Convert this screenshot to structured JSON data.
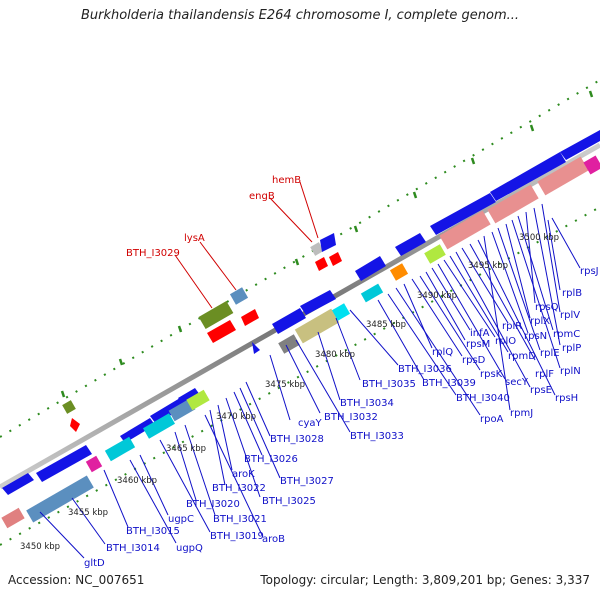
{
  "title": "Burkholderia thailandensis E264 chromosome I, complete genom...",
  "footer": {
    "accession": "Accession: NC_007651",
    "summary": "Topology: circular; Length: 3,809,201 bp; Genes: 3,337"
  },
  "ticks": [
    "3450 kbp",
    "3455 kbp",
    "3460 kbp",
    "3465 kbp",
    "3470 kbp",
    "3475 kbp",
    "3480 kbp",
    "3485 kbp",
    "3490 kbp",
    "3495 kbp",
    "3500 kbp"
  ],
  "red_labels": [
    "BTH_I3029",
    "lysA",
    "engB",
    "hemB"
  ],
  "blue_labels": [
    "gltD",
    "BTH_I3014",
    "BTH_I3015",
    "ugpQ",
    "ugpC",
    "BTH_I3019",
    "BTH_I3020",
    "BTH_I3021",
    "aroB",
    "BTH_I3022",
    "aroK",
    "BTH_I3025",
    "BTH_I3026",
    "BTH_I3027",
    "BTH_I3028",
    "cyaY",
    "BTH_I3032",
    "BTH_I3033",
    "BTH_I3034",
    "BTH_I3035",
    "BTH_I3036",
    "BTH_I3039",
    "BTH_I3040",
    "rpoA",
    "rplQ",
    "rpsD",
    "rpsK",
    "rpsM",
    "infA",
    "secY",
    "rplO",
    "rpmD",
    "rpsE",
    "rplR",
    "rplF",
    "rpsH",
    "rpmJ",
    "rpsN",
    "rplE",
    "rplX",
    "rplN",
    "rpmC",
    "rpsQ",
    "rplP",
    "rplV",
    "rplB",
    "rpsJ"
  ],
  "colors": {
    "backbone": "#8a8a8a",
    "forward_gene": "#1414e6",
    "tick_green": "#2e8b1f",
    "label_blue": "#1010c8",
    "label_red": "#d00000"
  }
}
